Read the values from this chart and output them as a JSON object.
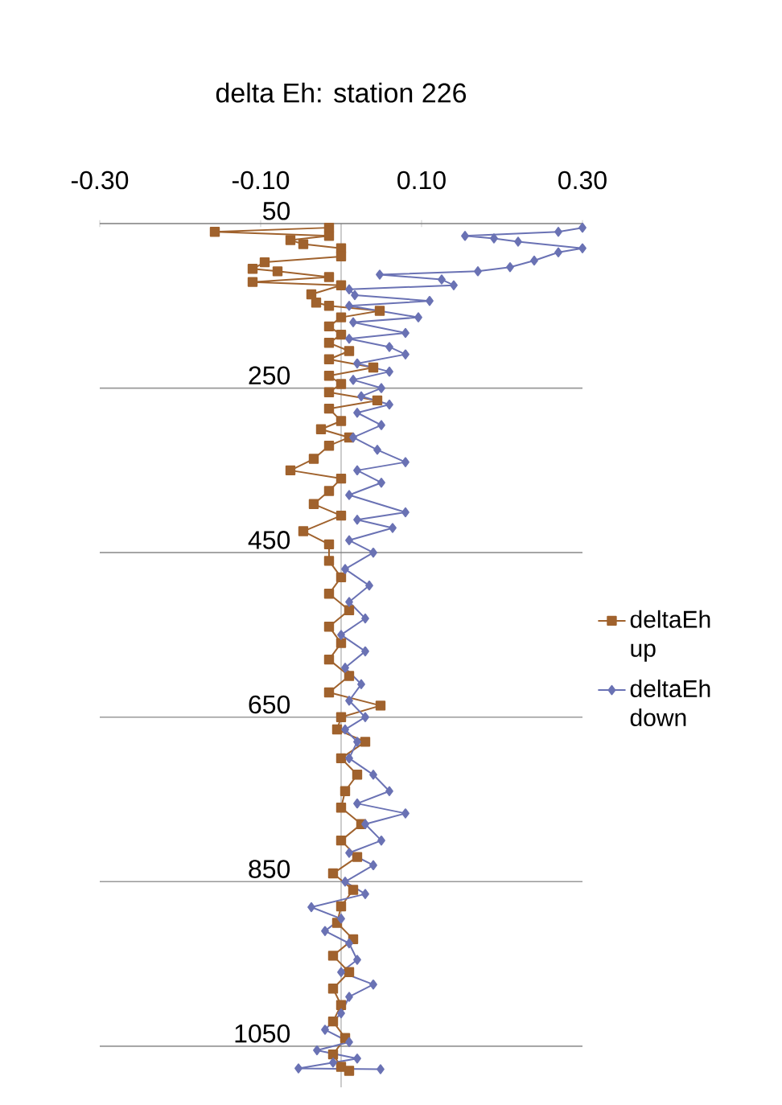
{
  "chart_data": {
    "type": "line",
    "title": "delta Eh: station 226",
    "xlim": [
      -0.3,
      0.3
    ],
    "xticks": [
      {
        "value": -0.3,
        "label": "-0.30"
      },
      {
        "value": -0.1,
        "label": "-0.10"
      },
      {
        "value": 0.1,
        "label": "0.10"
      },
      {
        "value": 0.3,
        "label": "0.30"
      }
    ],
    "ylim": [
      1100,
      50
    ],
    "yticks": [
      50,
      250,
      450,
      650,
      850,
      1050
    ],
    "grid": "y",
    "legend": "right",
    "series": [
      {
        "name": "deltaEh up",
        "color": "#a0622d",
        "marker": "square",
        "x": [
          -0.015,
          -0.157,
          -0.015,
          -0.063,
          -0.047,
          0.0,
          0.0,
          -0.095,
          -0.11,
          -0.079,
          -0.015,
          -0.11,
          0.0,
          -0.037,
          -0.031,
          -0.015,
          0.048,
          0.0,
          -0.015,
          0.0,
          -0.015,
          0.01,
          -0.015,
          0.04,
          -0.015,
          0.0,
          -0.015,
          0.045,
          -0.015,
          0.0,
          -0.025,
          0.01,
          -0.015,
          -0.034,
          -0.063,
          0.0,
          -0.015,
          -0.034,
          0.0,
          -0.047,
          -0.015,
          -0.015,
          0.0,
          -0.015,
          0.01,
          -0.015,
          0.0,
          -0.015,
          0.01,
          -0.015,
          0.049,
          0.0,
          -0.005,
          0.03,
          0.0,
          0.02,
          0.005,
          0.0,
          0.025,
          0.0,
          0.02,
          -0.01,
          0.015,
          0.0,
          -0.005,
          0.015,
          -0.01,
          0.01,
          -0.01,
          0.0,
          -0.01,
          0.005,
          -0.01,
          0.0,
          0.01
        ],
        "values": [
          55,
          60,
          65,
          70,
          75,
          80,
          90,
          97,
          105,
          108,
          115,
          121,
          125,
          136,
          146,
          150,
          156,
          164,
          175,
          185,
          195,
          205,
          215,
          225,
          235,
          245,
          255,
          265,
          275,
          290,
          300,
          310,
          320,
          336,
          350,
          360,
          375,
          391,
          405,
          424,
          440,
          460,
          480,
          500,
          520,
          540,
          560,
          580,
          600,
          620,
          636,
          650,
          665,
          680,
          700,
          720,
          740,
          760,
          780,
          800,
          820,
          840,
          860,
          880,
          900,
          920,
          940,
          960,
          980,
          1000,
          1020,
          1040,
          1060,
          1075,
          1080
        ]
      },
      {
        "name": "deltaEh down",
        "color": "#6a72b4",
        "marker": "diamond",
        "x": [
          0.3,
          0.27,
          0.154,
          0.19,
          0.22,
          0.3,
          0.27,
          0.24,
          0.21,
          0.17,
          0.048,
          0.125,
          0.14,
          0.01,
          0.017,
          0.11,
          0.01,
          0.096,
          0.015,
          0.08,
          0.01,
          0.06,
          0.08,
          0.02,
          0.06,
          0.015,
          0.05,
          0.025,
          0.06,
          0.02,
          0.05,
          0.015,
          0.045,
          0.08,
          0.02,
          0.05,
          0.01,
          0.08,
          0.02,
          0.064,
          0.01,
          0.04,
          0.005,
          0.035,
          0.01,
          0.03,
          0.0,
          0.03,
          0.005,
          0.025,
          0.01,
          0.03,
          0.005,
          0.02,
          0.01,
          0.04,
          0.06,
          0.02,
          0.08,
          0.03,
          0.05,
          0.01,
          0.04,
          0.005,
          0.03,
          -0.037,
          0.0,
          -0.02,
          0.01,
          0.02,
          0.0,
          0.04,
          0.01,
          0.0,
          -0.02,
          0.01,
          -0.03,
          0.02,
          -0.01,
          -0.053,
          0.049
        ],
        "values": [
          55,
          60,
          65,
          68,
          72,
          80,
          85,
          95,
          103,
          108,
          112,
          118,
          125,
          130,
          137,
          144,
          150,
          164,
          170,
          183,
          190,
          200,
          209,
          220,
          230,
          240,
          250,
          260,
          270,
          280,
          295,
          310,
          325,
          340,
          350,
          365,
          380,
          401,
          410,
          420,
          435,
          450,
          470,
          490,
          510,
          530,
          550,
          570,
          590,
          610,
          630,
          650,
          665,
          680,
          700,
          720,
          740,
          755,
          767,
          780,
          800,
          815,
          830,
          850,
          865,
          881,
          895,
          910,
          925,
          945,
          960,
          975,
          990,
          1010,
          1030,
          1045,
          1055,
          1065,
          1070,
          1077,
          1078
        ]
      }
    ]
  }
}
